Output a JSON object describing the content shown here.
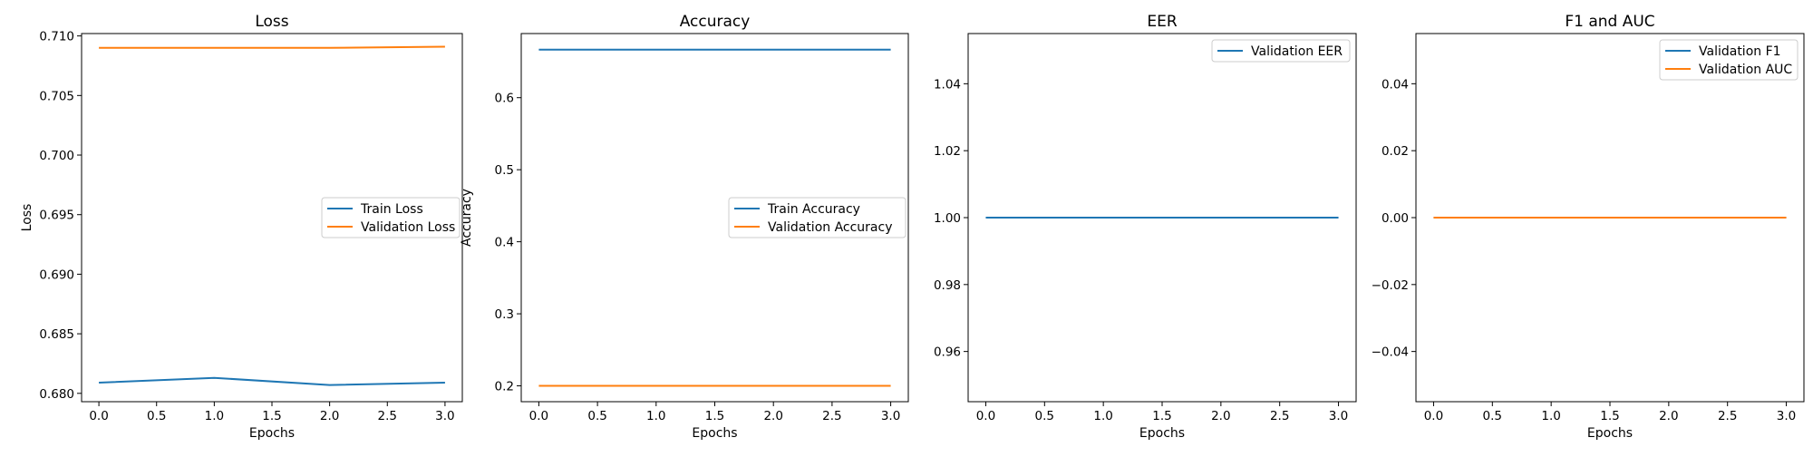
{
  "colors": {
    "series_1": "#1f77b4",
    "series_2": "#ff7f0e"
  },
  "chart_data": [
    {
      "type": "line",
      "title": "Loss",
      "xlabel": "Epochs",
      "ylabel": "Loss",
      "x": [
        0,
        1,
        2,
        3
      ],
      "xlim": [
        -0.15,
        3.15
      ],
      "ylim": [
        0.6793,
        0.7102
      ],
      "xticks": [
        0.0,
        0.5,
        1.0,
        1.5,
        2.0,
        2.5,
        3.0
      ],
      "xtick_labels": [
        "0.0",
        "0.5",
        "1.0",
        "1.5",
        "2.0",
        "2.5",
        "3.0"
      ],
      "yticks": [
        0.68,
        0.685,
        0.69,
        0.695,
        0.7,
        0.705,
        0.71
      ],
      "ytick_labels": [
        "0.680",
        "0.685",
        "0.690",
        "0.695",
        "0.700",
        "0.705",
        "0.710"
      ],
      "grid": false,
      "legend_position": "center-right",
      "series": [
        {
          "name": "Train Loss",
          "color": "#1f77b4",
          "values": [
            0.6809,
            0.6813,
            0.6807,
            0.6809
          ]
        },
        {
          "name": "Validation Loss",
          "color": "#ff7f0e",
          "values": [
            0.709,
            0.709,
            0.709,
            0.7091
          ]
        }
      ]
    },
    {
      "type": "line",
      "title": "Accuracy",
      "xlabel": "Epochs",
      "ylabel": "Accuracy",
      "x": [
        0,
        1,
        2,
        3
      ],
      "xlim": [
        -0.15,
        3.15
      ],
      "ylim": [
        0.178,
        0.689
      ],
      "xticks": [
        0.0,
        0.5,
        1.0,
        1.5,
        2.0,
        2.5,
        3.0
      ],
      "xtick_labels": [
        "0.0",
        "0.5",
        "1.0",
        "1.5",
        "2.0",
        "2.5",
        "3.0"
      ],
      "yticks": [
        0.2,
        0.3,
        0.4,
        0.5,
        0.6
      ],
      "ytick_labels": [
        "0.2",
        "0.3",
        "0.4",
        "0.5",
        "0.6"
      ],
      "grid": false,
      "legend_position": "center-right",
      "series": [
        {
          "name": "Train Accuracy",
          "color": "#1f77b4",
          "values": [
            0.6667,
            0.6667,
            0.6667,
            0.6667
          ]
        },
        {
          "name": "Validation Accuracy",
          "color": "#ff7f0e",
          "values": [
            0.2,
            0.2,
            0.2,
            0.2
          ]
        }
      ]
    },
    {
      "type": "line",
      "title": "EER",
      "xlabel": "Epochs",
      "ylabel": "",
      "x": [
        0,
        1,
        2,
        3
      ],
      "xlim": [
        -0.15,
        3.15
      ],
      "ylim": [
        0.945,
        1.055
      ],
      "xticks": [
        0.0,
        0.5,
        1.0,
        1.5,
        2.0,
        2.5,
        3.0
      ],
      "xtick_labels": [
        "0.0",
        "0.5",
        "1.0",
        "1.5",
        "2.0",
        "2.5",
        "3.0"
      ],
      "yticks": [
        0.96,
        0.98,
        1.0,
        1.02,
        1.04
      ],
      "ytick_labels": [
        "0.96",
        "0.98",
        "1.00",
        "1.02",
        "1.04"
      ],
      "grid": false,
      "legend_position": "top-right",
      "series": [
        {
          "name": "Validation EER",
          "color": "#1f77b4",
          "values": [
            1.0,
            1.0,
            1.0,
            1.0
          ]
        }
      ]
    },
    {
      "type": "line",
      "title": "F1 and AUC",
      "xlabel": "Epochs",
      "ylabel": "",
      "x": [
        0,
        1,
        2,
        3
      ],
      "xlim": [
        -0.15,
        3.15
      ],
      "ylim": [
        -0.055,
        0.055
      ],
      "xticks": [
        0.0,
        0.5,
        1.0,
        1.5,
        2.0,
        2.5,
        3.0
      ],
      "xtick_labels": [
        "0.0",
        "0.5",
        "1.0",
        "1.5",
        "2.0",
        "2.5",
        "3.0"
      ],
      "yticks": [
        -0.04,
        -0.02,
        0.0,
        0.02,
        0.04
      ],
      "ytick_labels": [
        "−0.04",
        "−0.02",
        "0.00",
        "0.02",
        "0.04"
      ],
      "grid": false,
      "legend_position": "top-right",
      "series": [
        {
          "name": "Validation F1",
          "color": "#1f77b4",
          "values": [
            0.0,
            0.0,
            0.0,
            0.0
          ]
        },
        {
          "name": "Validation AUC",
          "color": "#ff7f0e",
          "values": [
            0.0,
            0.0,
            0.0,
            0.0
          ]
        }
      ]
    }
  ]
}
